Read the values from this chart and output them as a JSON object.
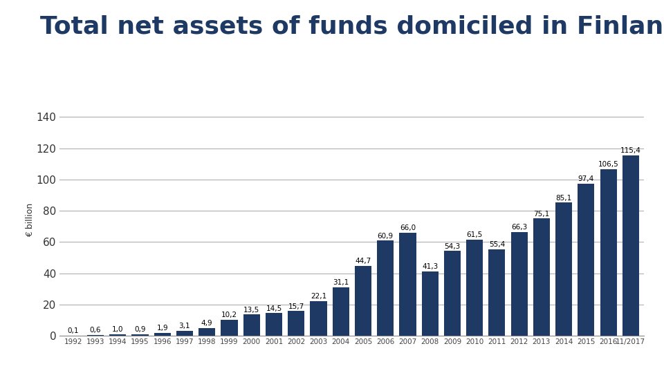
{
  "title": "Total net assets of funds domiciled in Finland",
  "ylabel": "€ billion",
  "categories": [
    "1992",
    "1993",
    "1994",
    "1995",
    "1996",
    "1997",
    "1998",
    "1999",
    "2000",
    "2001",
    "2002",
    "2003",
    "2004",
    "2005",
    "2006",
    "2007",
    "2008",
    "2009",
    "2010",
    "2011",
    "2012",
    "2013",
    "2014",
    "2015",
    "2016",
    "11/2017"
  ],
  "values": [
    0.1,
    0.6,
    1.0,
    0.9,
    1.9,
    3.1,
    4.9,
    10.2,
    13.5,
    14.5,
    15.7,
    22.1,
    31.1,
    44.7,
    60.9,
    66.0,
    41.3,
    54.3,
    61.5,
    55.4,
    66.3,
    75.1,
    85.1,
    97.4,
    106.5,
    115.4
  ],
  "bar_color": "#1e3a64",
  "title_color": "#1e3a64",
  "title_fontsize": 26,
  "label_fontsize": 7.5,
  "ytick_fontsize": 11,
  "xtick_fontsize": 7.5,
  "axis_label_fontsize": 9,
  "yticks": [
    0,
    20,
    40,
    60,
    80,
    100,
    120,
    140
  ],
  "ylim": [
    0,
    148
  ],
  "background_color": "#ffffff",
  "grid_color": "#b0b0b0"
}
